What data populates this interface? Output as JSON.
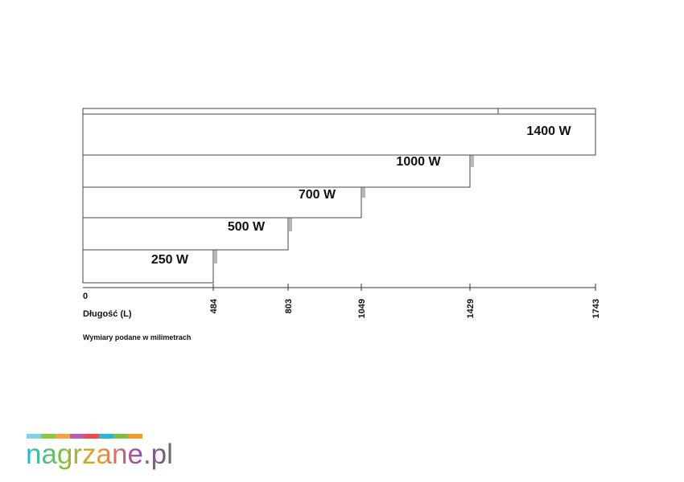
{
  "diagram": {
    "axis_zero": "0",
    "axis_label": "Długość (L)",
    "note": "Wymiary podane w milimetrach",
    "ticks": [
      "484",
      "803",
      "1049",
      "1429",
      "1743"
    ],
    "heaters": [
      "250 W",
      "500 W",
      "700 W",
      "1000 W",
      "1400 W"
    ]
  },
  "logo": {
    "text": "nagrzane.pl"
  }
}
